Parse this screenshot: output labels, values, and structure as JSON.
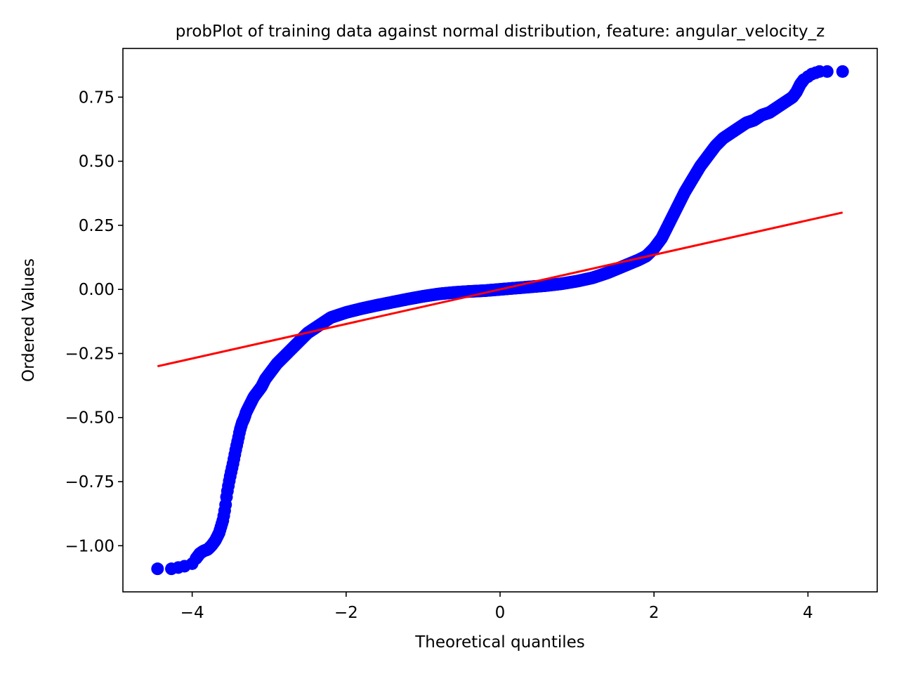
{
  "chart_data": {
    "type": "scatter",
    "title": "probPlot of training data against normal distribution, feature: angular_velocity_z",
    "xlabel": "Theoretical quantiles",
    "ylabel": "Ordered Values",
    "xlim": [
      -4.9,
      4.9
    ],
    "ylim": [
      -1.18,
      0.94
    ],
    "xticks": [
      -4,
      -2,
      0,
      2,
      4
    ],
    "xtick_labels": [
      "−4",
      "−2",
      "0",
      "2",
      "4"
    ],
    "yticks": [
      -1.0,
      -0.75,
      -0.5,
      -0.25,
      0.0,
      0.25,
      0.5,
      0.75
    ],
    "ytick_labels": [
      "−1.00",
      "−0.75",
      "−0.50",
      "−0.25",
      "0.00",
      "0.25",
      "0.50",
      "0.75"
    ],
    "grid": false,
    "series": [
      {
        "kind": "points",
        "color": "#0000ff",
        "x": [
          -4.45,
          -4.27,
          -4.18,
          -4.1,
          -4.0,
          -3.95,
          -3.9,
          -3.85,
          -3.8,
          -3.75,
          -3.7,
          -3.65,
          -3.6,
          -3.57,
          -3.55,
          -3.52,
          -3.5,
          -3.47,
          -3.45,
          -3.43,
          -3.4,
          -3.38,
          -3.35,
          -3.32,
          -3.3,
          -3.25,
          -3.2,
          -3.15,
          -3.1,
          -3.05,
          -3.0,
          -2.9,
          -2.8,
          -2.7,
          -2.6,
          -2.5,
          -2.4,
          -2.3,
          -2.2,
          -2.0,
          -1.8,
          -1.6,
          -1.4,
          -1.2,
          -1.0,
          -0.8,
          -0.6,
          -0.4,
          -0.2,
          0.0,
          0.2,
          0.4,
          0.6,
          0.8,
          1.0,
          1.2,
          1.4,
          1.6,
          1.8,
          1.9,
          2.0,
          2.1,
          2.2,
          2.3,
          2.4,
          2.5,
          2.6,
          2.7,
          2.8,
          2.9,
          3.0,
          3.1,
          3.2,
          3.3,
          3.4,
          3.5,
          3.6,
          3.7,
          3.8,
          3.85,
          3.9,
          3.95,
          4.0,
          4.05,
          4.1,
          4.15,
          4.25,
          4.45
        ],
        "y": [
          -1.09,
          -1.09,
          -1.085,
          -1.08,
          -1.07,
          -1.05,
          -1.03,
          -1.02,
          -1.015,
          -1.0,
          -0.98,
          -0.95,
          -0.9,
          -0.85,
          -0.8,
          -0.75,
          -0.72,
          -0.68,
          -0.65,
          -0.62,
          -0.58,
          -0.55,
          -0.52,
          -0.5,
          -0.48,
          -0.45,
          -0.42,
          -0.4,
          -0.38,
          -0.35,
          -0.33,
          -0.29,
          -0.26,
          -0.23,
          -0.2,
          -0.17,
          -0.15,
          -0.13,
          -0.11,
          -0.09,
          -0.075,
          -0.062,
          -0.05,
          -0.038,
          -0.027,
          -0.018,
          -0.012,
          -0.008,
          -0.005,
          0.0,
          0.005,
          0.01,
          0.015,
          0.022,
          0.032,
          0.045,
          0.065,
          0.09,
          0.115,
          0.13,
          0.16,
          0.2,
          0.26,
          0.32,
          0.38,
          0.43,
          0.48,
          0.52,
          0.56,
          0.59,
          0.61,
          0.63,
          0.65,
          0.66,
          0.68,
          0.69,
          0.71,
          0.73,
          0.75,
          0.77,
          0.8,
          0.82,
          0.83,
          0.84,
          0.845,
          0.85,
          0.85,
          0.85
        ]
      },
      {
        "kind": "line",
        "color": "#ff0000",
        "x": [
          -4.45,
          4.45
        ],
        "y": [
          -0.3,
          0.3
        ]
      }
    ]
  }
}
